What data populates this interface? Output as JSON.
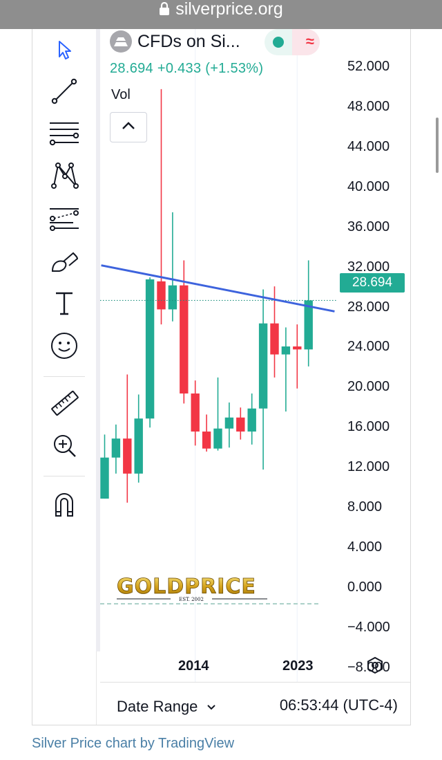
{
  "browser": {
    "url": "silverprice.org"
  },
  "header": {
    "symbol": "CFDs on Si...",
    "last_price": "28.694",
    "change": "+0.433",
    "change_pct": "(+1.53%)",
    "indicator_label": "Vol",
    "status_wave": "≈"
  },
  "toolbar": {
    "tools": [
      "cursor-icon",
      "trend-line-icon",
      "fib-retracement-icon",
      "pattern-icon",
      "forecast-icon",
      "brush-icon",
      "text-icon",
      "emoji-icon",
      "ruler-icon",
      "zoom-in-icon",
      "magnet-icon"
    ]
  },
  "price_badge": "28.694",
  "bottom_bar": {
    "date_range_label": "Date Range",
    "clock": "06:53:44 (UTC-4)"
  },
  "logo": {
    "text": "GOLDPRICE",
    "subtext": "EST. 2002"
  },
  "attribution": "Silver Price chart by TradingView",
  "colors": {
    "up": "#22ab94",
    "down": "#f23645",
    "trendline": "#3d63dd",
    "accent": "#22ab94"
  },
  "chart_data": {
    "type": "candlestick",
    "x_tick_labels": [
      {
        "label": "2014",
        "index": 8
      },
      {
        "label": "2023",
        "index": 17
      }
    ],
    "y_tick_labels": [
      "52.000",
      "48.000",
      "44.000",
      "40.000",
      "36.000",
      "32.000",
      "28.000",
      "24.000",
      "20.000",
      "16.000",
      "12.000",
      "8.000",
      "4.000",
      "0.000",
      "−4.000",
      "−8.000"
    ],
    "ylim": [
      -9.4,
      55.8
    ],
    "last_price_line": 28.694,
    "baseline": -1.6,
    "candles": [
      {
        "o": 8.9,
        "h": 15.3,
        "l": 8.9,
        "c": 13.0
      },
      {
        "o": 13.0,
        "h": 16.3,
        "l": 11.4,
        "c": 14.9
      },
      {
        "o": 14.9,
        "h": 21.3,
        "l": 8.5,
        "c": 11.4
      },
      {
        "o": 11.4,
        "h": 19.3,
        "l": 10.5,
        "c": 16.9
      },
      {
        "o": 16.9,
        "h": 31.0,
        "l": 16.0,
        "c": 30.8
      },
      {
        "o": 30.6,
        "h": 49.8,
        "l": 26.3,
        "c": 27.8
      },
      {
        "o": 27.8,
        "h": 37.5,
        "l": 26.6,
        "c": 30.2
      },
      {
        "o": 30.2,
        "h": 32.7,
        "l": 18.4,
        "c": 19.4
      },
      {
        "o": 19.4,
        "h": 20.7,
        "l": 14.2,
        "c": 15.6
      },
      {
        "o": 15.6,
        "h": 17.3,
        "l": 13.6,
        "c": 13.9
      },
      {
        "o": 13.9,
        "h": 21.0,
        "l": 13.7,
        "c": 15.9
      },
      {
        "o": 15.9,
        "h": 18.5,
        "l": 14.0,
        "c": 17.0
      },
      {
        "o": 17.0,
        "h": 18.0,
        "l": 14.8,
        "c": 15.6
      },
      {
        "o": 15.6,
        "h": 19.4,
        "l": 14.3,
        "c": 17.9
      },
      {
        "o": 17.9,
        "h": 29.8,
        "l": 11.8,
        "c": 26.4
      },
      {
        "o": 26.4,
        "h": 30.1,
        "l": 21.0,
        "c": 23.3
      },
      {
        "o": 23.3,
        "h": 26.0,
        "l": 17.6,
        "c": 24.1
      },
      {
        "o": 24.1,
        "h": 26.3,
        "l": 19.9,
        "c": 23.8
      },
      {
        "o": 23.8,
        "h": 32.7,
        "l": 22.1,
        "c": 28.7
      }
    ],
    "trendline": {
      "from": {
        "index": -0.3,
        "y": 32.2
      },
      "to": {
        "index": 20.3,
        "y": 27.6
      }
    }
  }
}
